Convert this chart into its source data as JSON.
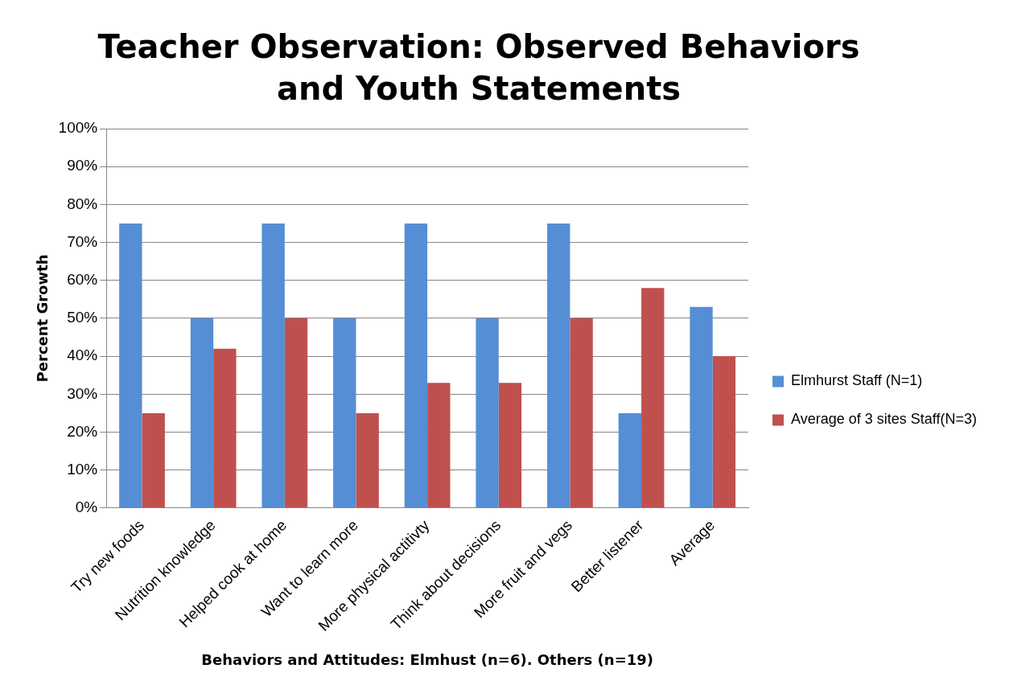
{
  "chart_data": {
    "type": "bar",
    "title": "Teacher Observation: Observed Behaviors and Youth Statements",
    "xlabel": "Behaviors and Attitudes: Elmhust (n=6). Others (n=19)",
    "ylabel": "Percent Growth",
    "categories": [
      "Try new foods",
      "Nutrition knowledge",
      "Helped cook at home",
      "Want to learn more",
      "More physical actitivty",
      "Think about decisions",
      "More fruit and vegs",
      "Better listener",
      "Average"
    ],
    "series": [
      {
        "name": "Elmhurst Staff (N=1)",
        "color": "#558ed5",
        "values": [
          75,
          50,
          75,
          50,
          75,
          50,
          75,
          25,
          53
        ]
      },
      {
        "name": "Average of 3 sites Staff(N=3)",
        "color": "#c0504d",
        "values": [
          25,
          42,
          50,
          25,
          33,
          33,
          50,
          58,
          40
        ]
      }
    ],
    "ylim": [
      0,
      100
    ],
    "yticks": [
      {
        "value": 0,
        "label": "0%"
      },
      {
        "value": 10,
        "label": "10%"
      },
      {
        "value": 20,
        "label": "20%"
      },
      {
        "value": 30,
        "label": "30%"
      },
      {
        "value": 40,
        "label": "40%"
      },
      {
        "value": 50,
        "label": "50%"
      },
      {
        "value": 60,
        "label": "60%"
      },
      {
        "value": 70,
        "label": "70%"
      },
      {
        "value": 80,
        "label": "80%"
      },
      {
        "value": 90,
        "label": "90%"
      },
      {
        "value": 100,
        "label": "100%"
      }
    ],
    "grid": "y",
    "legend": "right"
  }
}
